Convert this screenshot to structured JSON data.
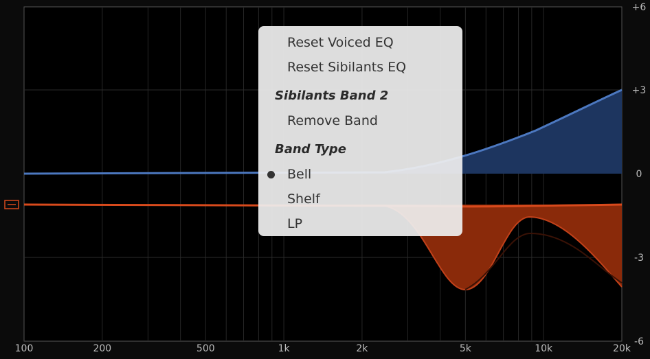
{
  "x_axis": {
    "labels": [
      "100",
      "200",
      "500",
      "1k",
      "2k",
      "5k",
      "10k",
      "20k"
    ]
  },
  "y_axis": {
    "labels": [
      "+6",
      "+3",
      "0",
      "-3",
      "-6"
    ]
  },
  "menu": {
    "items": [
      {
        "kind": "item",
        "label": "Reset Voiced EQ"
      },
      {
        "kind": "item",
        "label": "Reset Sibilants EQ"
      },
      {
        "kind": "header",
        "label": "Sibilants Band 2"
      },
      {
        "kind": "item",
        "label": "Remove Band"
      },
      {
        "kind": "header",
        "label": "Band Type"
      },
      {
        "kind": "item",
        "label": "Bell",
        "checked": true
      },
      {
        "kind": "item",
        "label": "Shelf"
      },
      {
        "kind": "item",
        "label": "LP"
      }
    ]
  }
}
